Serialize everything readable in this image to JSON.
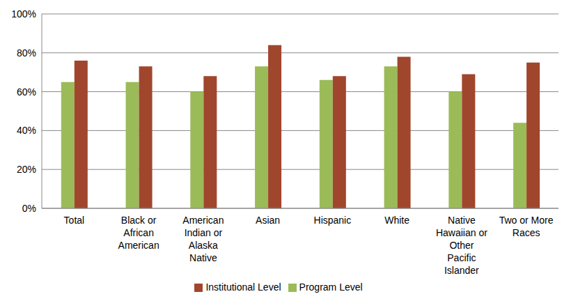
{
  "chart_data": {
    "type": "bar",
    "categories": [
      "Total",
      "Black or African American",
      "American Indian or Alaska Native",
      "Asian",
      "Hispanic",
      "White",
      "Native Hawaiian or Other Pacific Islander",
      "Two or More Races"
    ],
    "series": [
      {
        "name": "Program Level",
        "color": "#9bbb59",
        "values": [
          65,
          65,
          60,
          73,
          66,
          73,
          60,
          44
        ]
      },
      {
        "name": "Institutional Level",
        "color": "#a0462d",
        "values": [
          76,
          73,
          68,
          84,
          68,
          78,
          69,
          75
        ]
      }
    ],
    "ylim": [
      0,
      100
    ],
    "yticks": [
      {
        "value": 0,
        "label": "0%"
      },
      {
        "value": 20,
        "label": "20%"
      },
      {
        "value": 40,
        "label": "40%"
      },
      {
        "value": 60,
        "label": "60%"
      },
      {
        "value": 80,
        "label": "80%"
      },
      {
        "value": 100,
        "label": "100%"
      }
    ],
    "grid": true,
    "legend": "bottom"
  }
}
